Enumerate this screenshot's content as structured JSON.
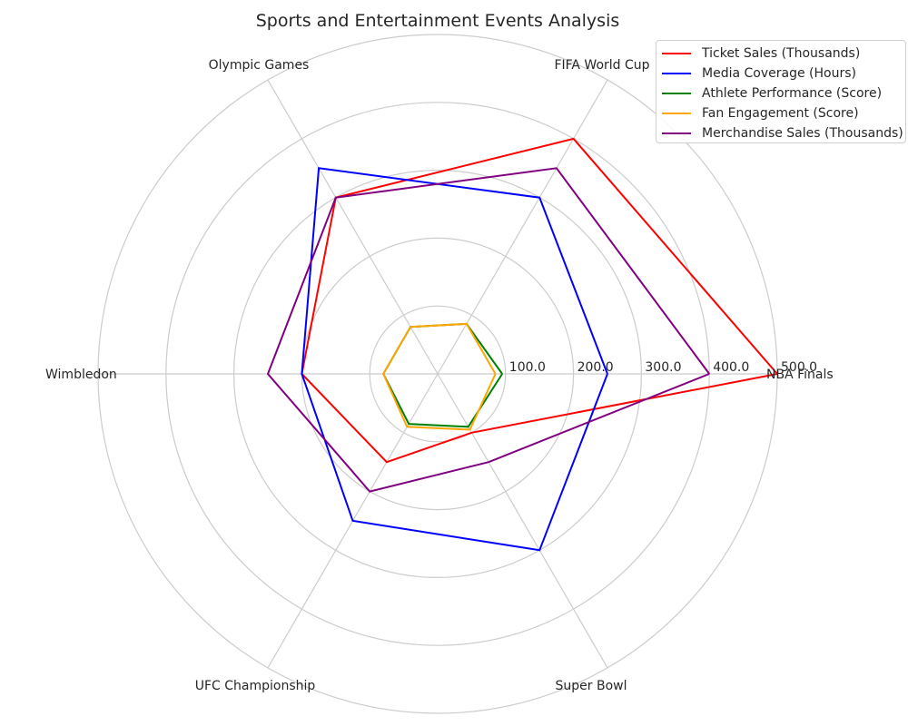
{
  "chart_data": {
    "type": "radar",
    "title": "Sports and Entertainment Events Analysis",
    "categories": [
      "NBA Finals",
      "FIFA World Cup",
      "Olympic Games",
      "Wimbledon",
      "UFC Championship",
      "Super Bowl"
    ],
    "rlim": [
      0,
      500
    ],
    "rticks": [
      100,
      200,
      300,
      400,
      500
    ],
    "rtick_labels": [
      "100.0",
      "200.0",
      "300.0",
      "400.0",
      "500.0"
    ],
    "grid": true,
    "legend_position": "top-right",
    "series": [
      {
        "name": "Ticket Sales (Thousands)",
        "color": "#ff0000",
        "values": [
          500,
          400,
          300,
          200,
          150,
          100
        ]
      },
      {
        "name": "Media Coverage (Hours)",
        "color": "#0000ff",
        "values": [
          250,
          300,
          350,
          200,
          250,
          300
        ]
      },
      {
        "name": "Athlete Performance (Score)",
        "color": "#008000",
        "values": [
          95,
          85,
          80,
          80,
          85,
          90
        ]
      },
      {
        "name": "Fan Engagement (Score)",
        "color": "#ffa500",
        "values": [
          85,
          85,
          80,
          80,
          90,
          95
        ]
      },
      {
        "name": "Merchandise Sales (Thousands)",
        "color": "#800080",
        "values": [
          400,
          350,
          300,
          250,
          200,
          150
        ]
      }
    ]
  }
}
